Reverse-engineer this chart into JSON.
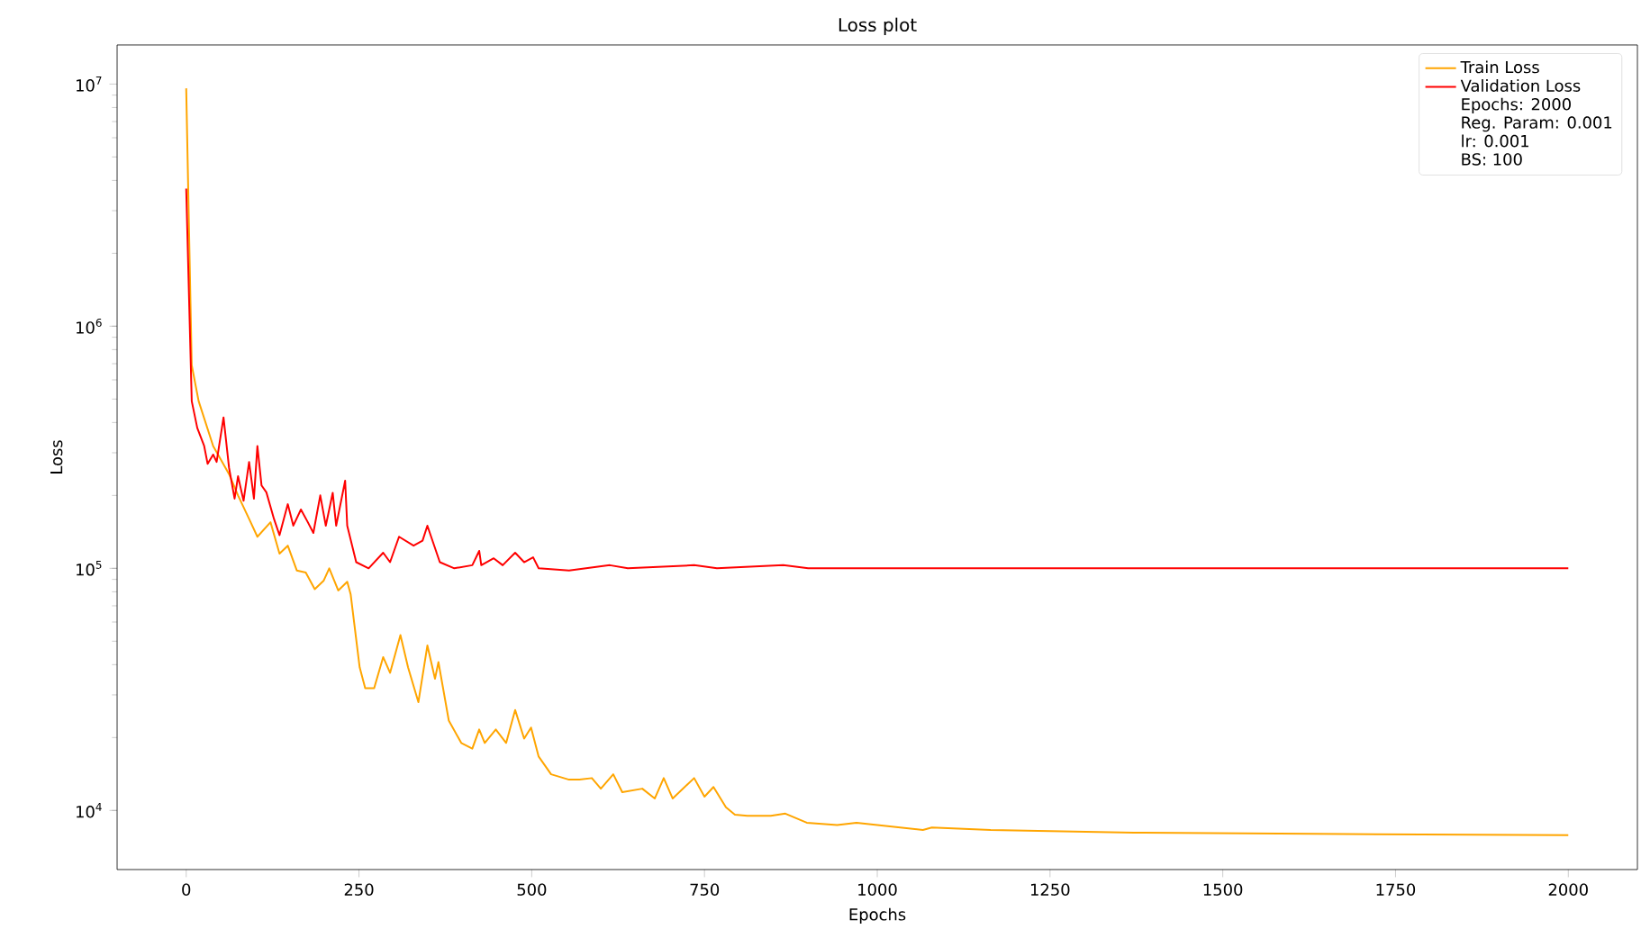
{
  "chart_data": {
    "type": "line",
    "title": "Loss plot",
    "xlabel": "Epochs",
    "ylabel": "Loss",
    "log": "y",
    "legend": "top right",
    "grid": false,
    "xlim": [
      -100,
      2100
    ],
    "xticks": [
      0,
      250,
      500,
      750,
      1000,
      1250,
      1500,
      1750,
      2000
    ],
    "ylim": [
      5700,
      14500000
    ],
    "yticks": [
      {
        "value": 10000,
        "label": "10$^{4}$"
      },
      {
        "value": 100000,
        "label": "10$^{5}$"
      },
      {
        "value": 1000000,
        "label": "10$^{6}$"
      },
      {
        "value": 10000000,
        "label": "10$^{7}$"
      }
    ],
    "annotations": [
      "Epochs: 2000",
      "Reg. Param: 0.001",
      "lr: 0.001",
      "BS: 100"
    ],
    "series": [
      {
        "name": "Train Loss",
        "color": "#ffa500",
        "x": [
          0,
          8,
          18,
          39,
          62,
          75,
          91,
          103,
          122,
          135,
          147,
          160,
          173,
          186,
          199,
          207,
          220,
          233,
          238,
          251,
          259,
          272,
          285,
          295,
          310,
          321,
          336,
          349,
          360,
          365,
          380,
          398,
          414,
          424,
          432,
          448,
          463,
          476,
          489,
          499,
          510,
          528,
          554,
          569,
          587,
          600,
          618,
          631,
          660,
          678,
          691,
          704,
          735,
          750,
          763,
          781,
          794,
          812,
          846,
          867,
          898,
          942,
          970,
          1066,
          1079,
          1164,
          1371,
          1630,
          2000
        ],
        "values": [
          9600000,
          690000,
          490000,
          320000,
          245000,
          200000,
          160000,
          135000,
          155000,
          115000,
          124000,
          98000,
          96000,
          82000,
          89000,
          100000,
          81000,
          88000,
          78000,
          39000,
          32000,
          32000,
          43000,
          37000,
          53000,
          39000,
          28000,
          48000,
          35000,
          41000,
          23500,
          19000,
          18000,
          21600,
          19000,
          21600,
          19000,
          26000,
          19800,
          22000,
          16700,
          14100,
          13400,
          13400,
          13600,
          12300,
          14100,
          11900,
          12300,
          11200,
          13600,
          11200,
          13600,
          11400,
          12500,
          10300,
          9600,
          9500,
          9500,
          9700,
          8900,
          8700,
          8900,
          8300,
          8500,
          8300,
          8100,
          8000,
          7900
        ]
      },
      {
        "name": "Validation Loss",
        "color": "#ff0000",
        "x": [
          0,
          8,
          16,
          26,
          31,
          39,
          44,
          54,
          62,
          70,
          75,
          83,
          91,
          98,
          103,
          109,
          116,
          127,
          135,
          147,
          155,
          166,
          176,
          184,
          194,
          202,
          212,
          217,
          230,
          233,
          246,
          264,
          285,
          295,
          308,
          329,
          342,
          349,
          367,
          388,
          414,
          424,
          427,
          445,
          458,
          476,
          489,
          502,
          510,
          554,
          613,
          639,
          735,
          768,
          864,
          900,
          2000
        ],
        "values": [
          3700000,
          490000,
          380000,
          320000,
          270000,
          295000,
          275000,
          420000,
          260000,
          194000,
          240000,
          190000,
          275000,
          194000,
          320000,
          220000,
          206000,
          160000,
          137000,
          184000,
          150000,
          175000,
          155000,
          140000,
          200000,
          150000,
          205000,
          150000,
          230000,
          150000,
          106000,
          100000,
          116000,
          106000,
          135000,
          124000,
          130000,
          150000,
          106000,
          100000,
          103000,
          118000,
          103000,
          110000,
          103000,
          116000,
          106000,
          111000,
          100000,
          98000,
          103000,
          100000,
          103000,
          100000,
          103000,
          100000,
          100000
        ]
      }
    ]
  }
}
